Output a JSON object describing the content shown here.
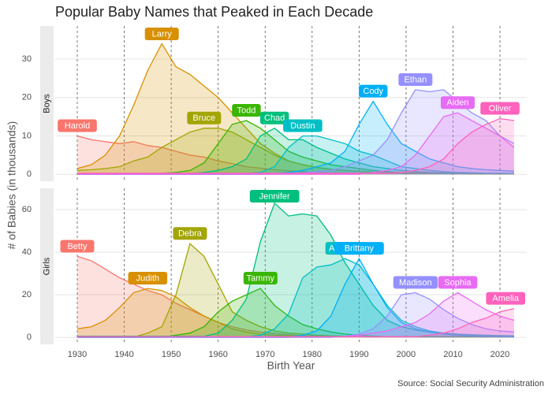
{
  "title": "Popular Baby Names that Peaked in Each Decade",
  "y_label": "# of Babies (in thousands)",
  "x_label": "Birth Year",
  "source": "Source: Social Security Administration",
  "chart_data": [
    {
      "type": "area",
      "facet": "Boys",
      "x": [
        1930,
        1933,
        1936,
        1939,
        1942,
        1945,
        1948,
        1951,
        1954,
        1957,
        1960,
        1963,
        1966,
        1969,
        1972,
        1975,
        1978,
        1981,
        1984,
        1987,
        1990,
        1993,
        1996,
        1999,
        2002,
        2005,
        2008,
        2011,
        2014,
        2017,
        2020,
        2023
      ],
      "xlim": [
        1925.3,
        2025.7
      ],
      "xticks": [
        1930,
        1940,
        1950,
        1960,
        1970,
        1980,
        1990,
        2000,
        2010,
        2020
      ],
      "ylim": [
        -1.8,
        38.6
      ],
      "yticks": [
        0,
        10,
        20,
        30
      ],
      "grid": true,
      "series": [
        {
          "name": "Harold",
          "color": "#F8766D",
          "values": [
            10,
            9,
            8.5,
            8,
            8.5,
            7.5,
            7,
            6,
            5,
            4.5,
            3.5,
            2.8,
            2,
            1.6,
            1.2,
            0.9,
            0.7,
            0.5,
            0.4,
            0.3,
            0.3,
            0.3,
            0.2,
            0.2,
            0.2,
            0.2,
            0.2,
            0.2,
            0.2,
            0.2,
            0.2,
            0.2
          ]
        },
        {
          "name": "Larry",
          "color": "#D89000",
          "values": [
            1.5,
            2.5,
            5,
            10,
            18,
            27,
            34,
            28,
            26,
            23,
            20,
            16,
            12,
            8,
            5.5,
            3.5,
            2.5,
            1.8,
            1.3,
            1,
            0.8,
            0.6,
            0.4,
            0.3,
            0.3,
            0.2,
            0.2,
            0.2,
            0.1,
            0.1,
            0.1,
            0.1
          ]
        },
        {
          "name": "Bruce",
          "color": "#A3A500",
          "values": [
            1,
            1.2,
            1.5,
            2,
            3.5,
            4.5,
            7,
            9,
            11,
            12,
            12,
            11,
            9,
            7,
            5,
            3.5,
            2.5,
            1.8,
            1.3,
            1,
            0.8,
            0.6,
            0.5,
            0.4,
            0.3,
            0.3,
            0.2,
            0.2,
            0.2,
            0.2,
            0.2,
            0.2
          ]
        },
        {
          "name": "Todd",
          "color": "#39B600",
          "values": [
            0,
            0,
            0,
            0,
            0.1,
            0.2,
            0.3,
            0.5,
            1,
            3,
            8,
            13,
            14,
            12,
            9,
            6,
            4.5,
            3.5,
            2.5,
            2,
            1.5,
            1,
            0.7,
            0.5,
            0.4,
            0.3,
            0.3,
            0.2,
            0.2,
            0.2,
            0.2,
            0.2
          ]
        },
        {
          "name": "Chad",
          "color": "#00BF7D",
          "values": [
            0,
            0,
            0,
            0,
            0,
            0,
            0,
            0.1,
            0.2,
            0.5,
            1,
            2,
            4,
            10,
            12,
            9,
            9,
            7,
            5.5,
            4,
            3,
            2,
            1.5,
            1,
            0.7,
            0.5,
            0.4,
            0.3,
            0.3,
            0.2,
            0.2,
            0.2
          ]
        },
        {
          "name": "Dustin",
          "color": "#00BFC4",
          "values": [
            0,
            0,
            0,
            0,
            0,
            0,
            0,
            0,
            0,
            0,
            0,
            0,
            0.2,
            0.5,
            2,
            7,
            10,
            10,
            9,
            8,
            6,
            5,
            3.5,
            2,
            1.5,
            1,
            0.7,
            0.5,
            0.4,
            0.3,
            0.3,
            0.2
          ]
        },
        {
          "name": "Cody",
          "color": "#00B0F6",
          "values": [
            0,
            0,
            0,
            0,
            0,
            0,
            0,
            0,
            0,
            0,
            0,
            0,
            0,
            0,
            0.2,
            0.5,
            1,
            2,
            3,
            6,
            13,
            19,
            13,
            8,
            6,
            4,
            3,
            2,
            1.5,
            1.2,
            1,
            0.8
          ]
        },
        {
          "name": "Ethan",
          "color": "#9590FF",
          "values": [
            0.2,
            0.2,
            0.2,
            0.2,
            0.2,
            0.2,
            0.2,
            0.2,
            0.2,
            0.2,
            0.2,
            0.2,
            0.2,
            0.2,
            0.2,
            0.2,
            0.4,
            0.7,
            1,
            2,
            3.5,
            5,
            9,
            16,
            22,
            21.5,
            22,
            19,
            16,
            14,
            10,
            8
          ]
        },
        {
          "name": "Aiden",
          "color": "#E76BF3",
          "values": [
            0,
            0,
            0,
            0,
            0,
            0,
            0,
            0,
            0,
            0,
            0,
            0,
            0,
            0,
            0,
            0,
            0,
            0,
            0,
            0,
            0,
            0.5,
            1,
            2,
            5,
            10,
            15,
            16,
            14,
            12,
            10,
            7
          ]
        },
        {
          "name": "Oliver",
          "color": "#FF62BC",
          "values": [
            0.3,
            0.3,
            0.3,
            0.3,
            0.3,
            0.3,
            0.3,
            0.3,
            0.3,
            0.3,
            0.3,
            0.3,
            0.3,
            0.3,
            0.3,
            0.3,
            0.3,
            0.3,
            0.3,
            0.3,
            0.3,
            0.3,
            0.3,
            0.5,
            1,
            2,
            4,
            8,
            11,
            13,
            14.5,
            14
          ]
        }
      ]
    },
    {
      "type": "area",
      "facet": "Girls",
      "x": [
        1930,
        1933,
        1936,
        1939,
        1942,
        1945,
        1948,
        1951,
        1954,
        1957,
        1960,
        1963,
        1966,
        1969,
        1972,
        1975,
        1978,
        1981,
        1984,
        1987,
        1990,
        1993,
        1996,
        1999,
        2002,
        2005,
        2008,
        2011,
        2014,
        2017,
        2020,
        2023
      ],
      "xlim": [
        1925.3,
        2025.7
      ],
      "xticks": [
        1930,
        1940,
        1950,
        1960,
        1970,
        1980,
        1990,
        2000,
        2010,
        2020
      ],
      "ylim": [
        -3.3,
        70
      ],
      "yticks": [
        0,
        20,
        40,
        60
      ],
      "grid": true,
      "series": [
        {
          "name": "Betty",
          "color": "#F8766D",
          "values": [
            38,
            36,
            32,
            28,
            25,
            22,
            20,
            16,
            13,
            10,
            7,
            5,
            3.5,
            2.5,
            1.8,
            1.2,
            0.8,
            0.5,
            0.3,
            0.3,
            0.3,
            0.2,
            0.2,
            0.2,
            0.2,
            0.2,
            0.2,
            0.2,
            0.2,
            0.2,
            0.2,
            0.2
          ]
        },
        {
          "name": "Judith",
          "color": "#D89000",
          "values": [
            4,
            5,
            8,
            14,
            21,
            23,
            22,
            19,
            14,
            10,
            7,
            4,
            2.5,
            1.5,
            1,
            0.7,
            0.5,
            0.4,
            0.3,
            0.2,
            0.2,
            0.2,
            0.2,
            0.2,
            0.2,
            0.2,
            0.2,
            0.2,
            0.2,
            0.2,
            0.2,
            0.2
          ]
        },
        {
          "name": "Debra",
          "color": "#A3A500",
          "values": [
            0.1,
            0.1,
            0.1,
            0.1,
            0.1,
            2,
            5,
            20,
            44,
            38,
            25,
            12,
            8,
            5,
            3,
            2,
            1.5,
            1,
            0.7,
            0.5,
            0.3,
            0.3,
            0.3,
            0.3,
            0.3,
            0.3,
            0.3,
            0.3,
            0.3,
            0.3,
            0.3,
            0.3
          ]
        },
        {
          "name": "Tammy",
          "color": "#39B600",
          "values": [
            0,
            0,
            0,
            0,
            0,
            0,
            0,
            1,
            2,
            5,
            12,
            17,
            20,
            23,
            15,
            10,
            6,
            4,
            2.5,
            1.5,
            1,
            0.6,
            0.3,
            0.3,
            0.3,
            0.3,
            0.3,
            0.3,
            0.3,
            0.3,
            0.3,
            0.3
          ]
        },
        {
          "name": "Jennifer",
          "color": "#00BF7D",
          "values": [
            0.5,
            0.5,
            0.5,
            0.5,
            0.5,
            0.5,
            0.5,
            0.5,
            0.5,
            0.5,
            2,
            8,
            18,
            45,
            63,
            57,
            58,
            57,
            48,
            35,
            25,
            15,
            8,
            5,
            3.5,
            2.5,
            2,
            1.5,
            1.2,
            1,
            0.8,
            0.7
          ]
        },
        {
          "name": "Amanda",
          "color": "#00BFC4",
          "values": [
            0.2,
            0.2,
            0.2,
            0.2,
            0.2,
            0.2,
            0.2,
            0.2,
            0.2,
            0.2,
            0.2,
            0.2,
            0.2,
            1,
            4,
            11,
            28,
            33,
            34,
            37,
            34,
            25,
            15,
            8,
            5,
            3,
            2,
            1.5,
            1,
            0.8,
            0.6,
            0.5
          ]
        },
        {
          "name": "Brittany",
          "color": "#00B0F6",
          "values": [
            0,
            0,
            0,
            0,
            0,
            0,
            0,
            0,
            0,
            0,
            0,
            0,
            0,
            0,
            0,
            0,
            1,
            3,
            10,
            25,
            37,
            25,
            14,
            7,
            4,
            2.5,
            1.5,
            1,
            0.7,
            0.5,
            0.4,
            0.3
          ]
        },
        {
          "name": "Madison",
          "color": "#9590FF",
          "values": [
            0,
            0,
            0,
            0,
            0,
            0,
            0,
            0,
            0,
            0,
            0,
            0,
            0,
            0,
            0,
            0,
            0,
            0,
            0,
            0.5,
            1.5,
            4,
            10,
            20,
            21,
            18,
            13,
            9,
            6,
            4,
            3,
            2.5
          ]
        },
        {
          "name": "Sophia",
          "color": "#E76BF3",
          "values": [
            0.3,
            0.3,
            0.3,
            0.3,
            0.3,
            0.3,
            0.3,
            0.3,
            0.3,
            0.3,
            0.3,
            0.3,
            0.3,
            0.3,
            0.3,
            0.3,
            0.3,
            0.3,
            0.3,
            0.3,
            1,
            2,
            3,
            5,
            7,
            11,
            17,
            21,
            17,
            13,
            10,
            8
          ]
        },
        {
          "name": "Amelia",
          "color": "#FF62BC",
          "values": [
            0.3,
            0.3,
            0.3,
            0.3,
            0.3,
            0.3,
            0.3,
            0.3,
            0.3,
            0.3,
            0.3,
            0.3,
            0.3,
            0.3,
            0.3,
            0.3,
            0.3,
            0.3,
            0.3,
            0.3,
            0.3,
            0.3,
            0.3,
            0.3,
            0.3,
            1,
            2,
            4,
            7,
            9,
            12,
            13.5
          ]
        }
      ]
    }
  ]
}
